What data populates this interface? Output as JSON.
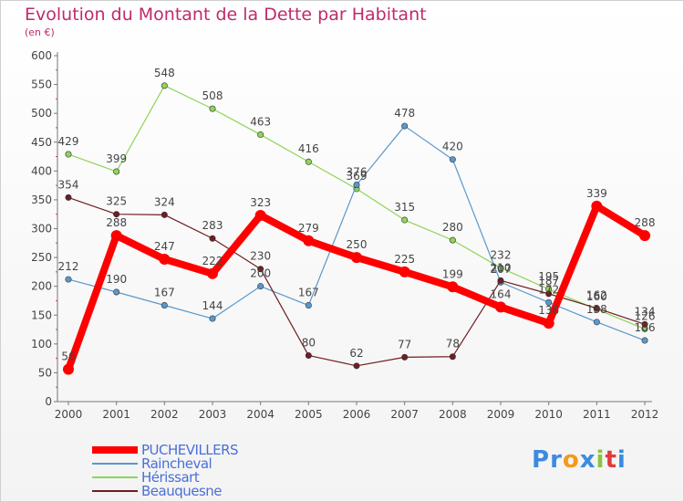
{
  "header": {
    "title": "Evolution du Montant de la Dette par Habitant",
    "unit": "(en €)"
  },
  "logo": {
    "text": "Proxiti",
    "letters": [
      "P",
      "r",
      "o",
      "x",
      "i",
      "t",
      "i"
    ],
    "colors": [
      "#3b8be0",
      "#3b8be0",
      "#f39a1a",
      "#3b8be0",
      "#8bc43c",
      "#e03b3b",
      "#3b8be0"
    ]
  },
  "chart_data": {
    "type": "line",
    "title": "Evolution du Montant de la Dette par Habitant",
    "ylabel": "(en €)",
    "xlabel": "",
    "ylim": [
      0,
      600
    ],
    "yticks": [
      0,
      50,
      100,
      150,
      200,
      250,
      300,
      350,
      400,
      450,
      500,
      550,
      600
    ],
    "x": [
      "2000",
      "2001",
      "2002",
      "2003",
      "2004",
      "2005",
      "2006",
      "2007",
      "2008",
      "2009",
      "2010",
      "2011",
      "2012"
    ],
    "grid": false,
    "legend": "bottom-left",
    "series": [
      {
        "name": "PUCHEVILLERS",
        "color": "#ff0000",
        "values": [
          56,
          288,
          247,
          222,
          323,
          279,
          250,
          225,
          199,
          164,
          136,
          339,
          288
        ],
        "labels": [
          "56",
          "288",
          "247",
          "222",
          "323",
          "279",
          "250",
          "225",
          "199",
          "164",
          "136",
          "339",
          "288"
        ]
      },
      {
        "name": "Raincheval",
        "color": "#5a98cc",
        "values": [
          212,
          190,
          167,
          144,
          200,
          167,
          376,
          478,
          420,
          207,
          172,
          138,
          106
        ],
        "labels": [
          "212",
          "190",
          "167",
          "144",
          "200",
          "167",
          "376",
          "478",
          "420",
          "207",
          "172",
          "138",
          "106"
        ]
      },
      {
        "name": "Hérissart",
        "color": "#8fd45a",
        "values": [
          429,
          399,
          548,
          508,
          463,
          416,
          369,
          315,
          280,
          232,
          195,
          160,
          126
        ],
        "labels": [
          "429",
          "399",
          "548",
          "508",
          "463",
          "416",
          "369",
          "315",
          "280",
          "232",
          "195",
          "160",
          "126"
        ]
      },
      {
        "name": "Beauquesne",
        "color": "#6e1e22",
        "values": [
          354,
          325,
          324,
          283,
          230,
          80,
          62,
          77,
          78,
          210,
          187,
          162,
          134
        ],
        "labels": [
          "354",
          "325",
          "324",
          "283",
          "230",
          "80",
          "62",
          "77",
          "78",
          "210",
          "187",
          "162",
          "134"
        ]
      }
    ]
  }
}
